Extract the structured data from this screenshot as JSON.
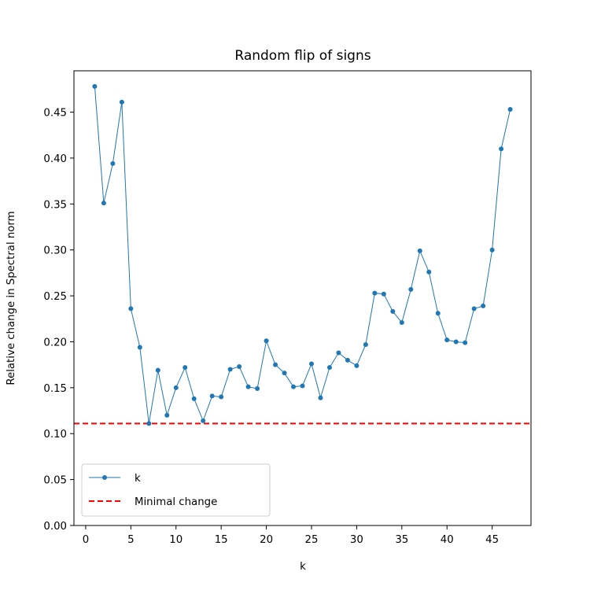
{
  "chart_data": {
    "type": "line",
    "title": "Random flip of signs",
    "xlabel": "k",
    "ylabel": "Relative change in Spectral norm",
    "xlim": [
      -1.3,
      49.3
    ],
    "ylim": [
      0.0,
      0.495
    ],
    "xticks": [
      0,
      5,
      10,
      15,
      20,
      25,
      30,
      35,
      40,
      45
    ],
    "yticks": [
      "0.00",
      "0.05",
      "0.10",
      "0.15",
      "0.20",
      "0.25",
      "0.30",
      "0.35",
      "0.40",
      "0.45"
    ],
    "grid": false,
    "legend_position": "lower-left",
    "series": [
      {
        "name": "k",
        "color": "#1f77b4",
        "style": "line-with-dots",
        "x": [
          1,
          2,
          3,
          4,
          5,
          6,
          7,
          8,
          9,
          10,
          11,
          12,
          13,
          14,
          15,
          16,
          17,
          18,
          19,
          20,
          21,
          22,
          23,
          24,
          25,
          26,
          27,
          28,
          29,
          30,
          31,
          32,
          33,
          34,
          35,
          36,
          37,
          38,
          39,
          40,
          41,
          42,
          43,
          44,
          45,
          46,
          47
        ],
        "y": [
          0.478,
          0.351,
          0.394,
          0.461,
          0.236,
          0.194,
          0.111,
          0.169,
          0.12,
          0.15,
          0.172,
          0.138,
          0.114,
          0.141,
          0.14,
          0.17,
          0.173,
          0.151,
          0.149,
          0.201,
          0.175,
          0.166,
          0.151,
          0.152,
          0.176,
          0.139,
          0.172,
          0.188,
          0.18,
          0.174,
          0.197,
          0.253,
          0.252,
          0.233,
          0.221,
          0.257,
          0.299,
          0.276,
          0.231,
          0.202,
          0.2,
          0.199,
          0.236,
          0.239,
          0.3,
          0.41,
          0.453
        ]
      },
      {
        "name": "Minimal change",
        "color": "#ff0000",
        "style": "dashed-hline",
        "y": 0.111
      }
    ]
  }
}
